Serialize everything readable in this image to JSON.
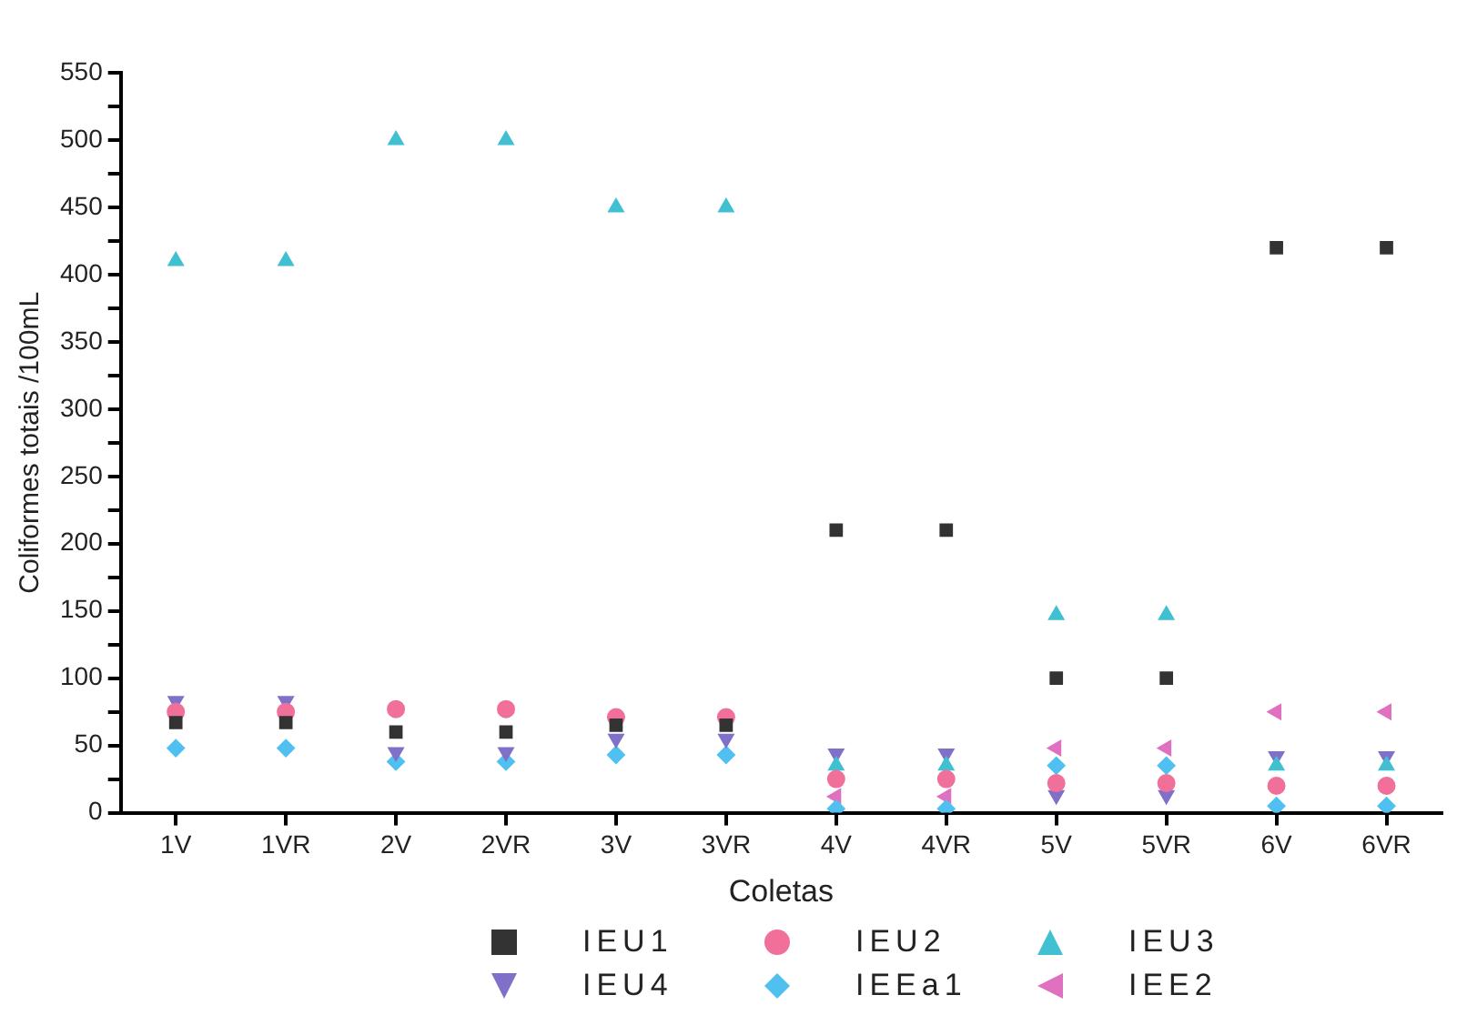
{
  "chart_data": {
    "type": "scatter",
    "xlabel": "Coletas",
    "ylabel": "Coliformes totais /100mL",
    "categories": [
      "1V",
      "1VR",
      "2V",
      "2VR",
      "3V",
      "3VR",
      "4V",
      "4VR",
      "5V",
      "5VR",
      "6V",
      "6VR"
    ],
    "series": [
      {
        "name": "IEU1",
        "color": "#333333",
        "marker": "square",
        "values": [
          67,
          67,
          60,
          60,
          65,
          65,
          210,
          210,
          100,
          100,
          420,
          420
        ]
      },
      {
        "name": "IEU2",
        "color": "#f0709a",
        "marker": "circle",
        "values": [
          75,
          75,
          77,
          77,
          71,
          71,
          25,
          25,
          22,
          22,
          20,
          20
        ]
      },
      {
        "name": "IEU3",
        "color": "#40c0d0",
        "marker": "triangle",
        "values": [
          410,
          410,
          500,
          500,
          450,
          450,
          35,
          35,
          147,
          147,
          35,
          35
        ]
      },
      {
        "name": "IEU4",
        "color": "#8070c8",
        "marker": "triangle-down",
        "values": [
          83,
          83,
          45,
          45,
          55,
          55,
          44,
          44,
          13,
          13,
          42,
          42
        ]
      },
      {
        "name": "IEEa1",
        "color": "#50c0f0",
        "marker": "diamond",
        "values": [
          48,
          48,
          38,
          38,
          43,
          43,
          3,
          3,
          35,
          35,
          5,
          5
        ]
      },
      {
        "name": "IEE2",
        "color": "#e070c0",
        "marker": "triangle-left",
        "values": [
          null,
          null,
          null,
          null,
          null,
          null,
          12,
          12,
          48,
          48,
          75,
          75
        ]
      }
    ],
    "ylim": [
      0,
      550
    ],
    "yticks": [
      0,
      {
        "value": 25,
        "label": null
      },
      50,
      {
        "value": 75,
        "label": null
      },
      100,
      {
        "value": 125,
        "label": null
      },
      150,
      {
        "value": 175,
        "label": null
      },
      200,
      {
        "value": 225,
        "label": null
      },
      250,
      {
        "value": 275,
        "label": null
      },
      300,
      {
        "value": 325,
        "label": null
      },
      350,
      {
        "value": 375,
        "label": null
      },
      400,
      {
        "value": 425,
        "label": null
      },
      450,
      {
        "value": 475,
        "label": null
      },
      500,
      {
        "value": 525,
        "label": null
      },
      550
    ],
    "grid": false,
    "legend": "bottom"
  }
}
